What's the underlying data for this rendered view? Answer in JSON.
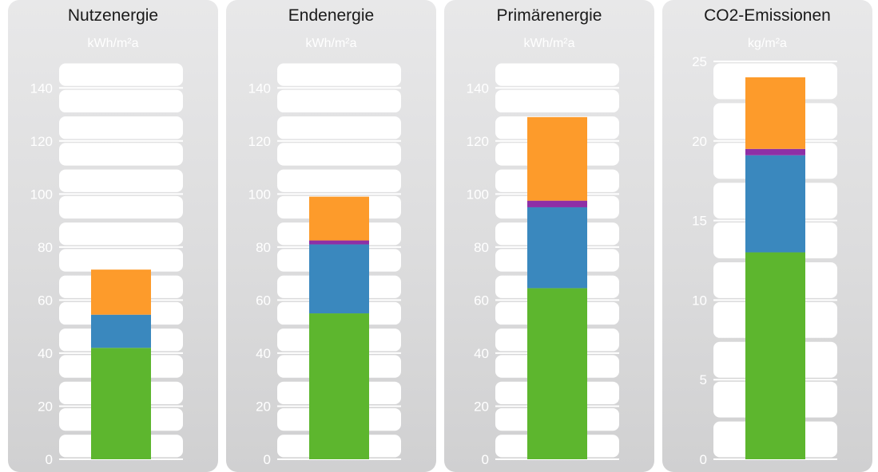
{
  "colors": {
    "segment_colors": [
      "#5db62e",
      "#3a88be",
      "#8e2fa6",
      "#fd9b2b"
    ],
    "panel_gradient": [
      "#e8e8e9",
      "#d0d0d1"
    ],
    "title_color": "#1a1a1a",
    "tick_color": "#ffffff"
  },
  "chart_data": [
    {
      "type": "bar",
      "stacked": true,
      "title": "Nutzenergie",
      "ylabel": "kWh/m²a",
      "ylim": [
        0,
        150
      ],
      "yticks": [
        0,
        20,
        40,
        60,
        80,
        100,
        120,
        140
      ],
      "segments": [
        42,
        12.5,
        0,
        17
      ]
    },
    {
      "type": "bar",
      "stacked": true,
      "title": "Endenergie",
      "ylabel": "kWh/m²a",
      "ylim": [
        0,
        150
      ],
      "yticks": [
        0,
        20,
        40,
        60,
        80,
        100,
        120,
        140
      ],
      "segments": [
        55,
        26,
        1.5,
        16.5
      ]
    },
    {
      "type": "bar",
      "stacked": true,
      "title": "Primärenergie",
      "ylabel": "kWh/m²a",
      "ylim": [
        0,
        150
      ],
      "yticks": [
        0,
        20,
        40,
        60,
        80,
        100,
        120,
        140
      ],
      "segments": [
        64.5,
        30.5,
        2.5,
        31.5
      ]
    },
    {
      "type": "bar",
      "stacked": true,
      "title": "CO2-Emissionen",
      "ylabel": "kg/m²a",
      "ylim": [
        0,
        25
      ],
      "yticks": [
        0,
        5,
        10,
        15,
        20,
        25
      ],
      "segments": [
        13,
        6.1,
        0.4,
        4.5
      ]
    }
  ]
}
